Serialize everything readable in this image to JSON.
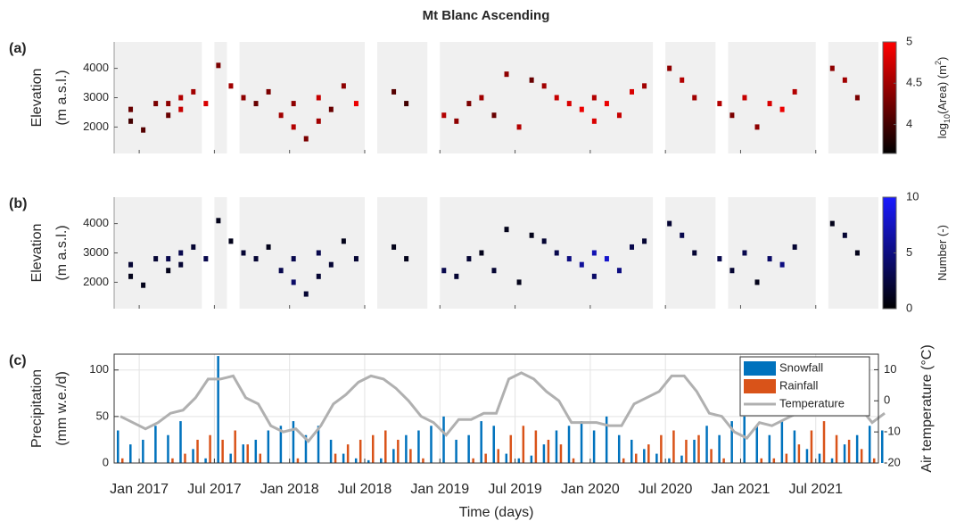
{
  "title": "Mt Blanc Ascending",
  "chart_data": [
    {
      "type": "heatmap",
      "panel_label": "(a)",
      "ylabel": [
        "Elevation",
        "(m a.s.l.)"
      ],
      "xlim": [
        "2016-11",
        "2021-12"
      ],
      "xticks": [
        "2017-01",
        "2017-07",
        "2018-01",
        "2018-07",
        "2019-01",
        "2019-07",
        "2020-01",
        "2020-07",
        "2021-01",
        "2021-07"
      ],
      "ylim": [
        1100,
        4900
      ],
      "yticks": [
        2000,
        3000,
        4000
      ],
      "coverage": [
        [
          "2016-11",
          "2017-06"
        ],
        [
          "2017-07",
          "2017-08"
        ],
        [
          "2017-09",
          "2018-07"
        ],
        [
          "2018-08",
          "2018-12"
        ],
        [
          "2019-01",
          "2020-06"
        ],
        [
          "2020-07",
          "2020-11"
        ],
        [
          "2020-12",
          "2021-07"
        ],
        [
          "2021-08",
          "2021-12"
        ]
      ],
      "x": [
        "2016-12",
        "2016-12",
        "2017-01",
        "2017-02",
        "2017-03",
        "2017-03",
        "2017-04",
        "2017-04",
        "2017-05",
        "2017-06",
        "2017-07",
        "2017-08",
        "2017-09",
        "2017-10",
        "2017-11",
        "2017-12",
        "2018-01",
        "2018-01",
        "2018-02",
        "2018-03",
        "2018-03",
        "2018-04",
        "2018-05",
        "2018-06",
        "2018-09",
        "2018-10",
        "2019-01",
        "2019-02",
        "2019-03",
        "2019-04",
        "2019-05",
        "2019-06",
        "2019-07",
        "2019-08",
        "2019-09",
        "2019-10",
        "2019-11",
        "2019-12",
        "2020-01",
        "2020-01",
        "2020-02",
        "2020-03",
        "2020-04",
        "2020-05",
        "2020-07",
        "2020-08",
        "2020-09",
        "2020-11",
        "2020-12",
        "2021-01",
        "2021-02",
        "2021-03",
        "2021-04",
        "2021-05",
        "2021-08",
        "2021-09",
        "2021-10"
      ],
      "y": [
        2600,
        2200,
        1900,
        2800,
        2800,
        2400,
        3000,
        2600,
        3200,
        2800,
        4100,
        3400,
        3000,
        2800,
        3200,
        2400,
        2000,
        2800,
        1600,
        3000,
        2200,
        2600,
        3400,
        2800,
        3200,
        2800,
        2400,
        2200,
        2800,
        3000,
        2400,
        3800,
        2000,
        3600,
        3400,
        3000,
        2800,
        2600,
        3000,
        2200,
        2800,
        2400,
        3200,
        3400,
        4000,
        3600,
        3000,
        2800,
        2400,
        3000,
        2000,
        2800,
        2600,
        3200,
        4000,
        3600,
        3000
      ],
      "values": [
        4.2,
        4.0,
        4.1,
        4.3,
        4.4,
        4.2,
        4.6,
        4.7,
        4.5,
        4.8,
        4.3,
        4.5,
        4.4,
        4.2,
        4.3,
        4.5,
        4.6,
        4.4,
        4.3,
        4.7,
        4.5,
        4.2,
        4.4,
        4.9,
        4.1,
        4.0,
        4.6,
        4.4,
        4.3,
        4.5,
        4.2,
        4.4,
        4.6,
        4.2,
        4.5,
        4.7,
        4.8,
        4.9,
        4.6,
        4.8,
        4.9,
        4.7,
        4.8,
        4.5,
        4.4,
        4.6,
        4.5,
        4.6,
        4.3,
        4.7,
        4.4,
        4.8,
        4.9,
        4.6,
        4.4,
        4.5,
        4.3
      ],
      "colorbar": {
        "label": [
          "log",
          "10",
          "(Area) (m",
          "2",
          ")"
        ],
        "lim": [
          3.65,
          5
        ],
        "ticks": [
          4,
          4.5,
          5
        ],
        "colors": [
          "#000000",
          "#ff0000"
        ]
      }
    },
    {
      "type": "heatmap",
      "panel_label": "(b)",
      "ylabel": [
        "Elevation",
        "(m a.s.l.)"
      ],
      "xlim": [
        "2016-11",
        "2021-12"
      ],
      "xticks": [
        "2017-01",
        "2017-07",
        "2018-01",
        "2018-07",
        "2019-01",
        "2019-07",
        "2020-01",
        "2020-07",
        "2021-01",
        "2021-07"
      ],
      "ylim": [
        1100,
        4900
      ],
      "yticks": [
        2000,
        3000,
        4000
      ],
      "coverage": [
        [
          "2016-11",
          "2017-06"
        ],
        [
          "2017-07",
          "2017-08"
        ],
        [
          "2017-09",
          "2018-07"
        ],
        [
          "2018-08",
          "2018-12"
        ],
        [
          "2019-01",
          "2020-06"
        ],
        [
          "2020-07",
          "2020-11"
        ],
        [
          "2020-12",
          "2021-07"
        ],
        [
          "2021-08",
          "2021-12"
        ]
      ],
      "x": [
        "2016-12",
        "2016-12",
        "2017-01",
        "2017-02",
        "2017-03",
        "2017-03",
        "2017-04",
        "2017-04",
        "2017-05",
        "2017-06",
        "2017-07",
        "2017-08",
        "2017-09",
        "2017-10",
        "2017-11",
        "2017-12",
        "2018-01",
        "2018-01",
        "2018-02",
        "2018-03",
        "2018-03",
        "2018-04",
        "2018-05",
        "2018-06",
        "2018-09",
        "2018-10",
        "2019-01",
        "2019-02",
        "2019-03",
        "2019-04",
        "2019-05",
        "2019-06",
        "2019-07",
        "2019-08",
        "2019-09",
        "2019-10",
        "2019-11",
        "2019-12",
        "2020-01",
        "2020-01",
        "2020-02",
        "2020-03",
        "2020-04",
        "2020-05",
        "2020-07",
        "2020-08",
        "2020-09",
        "2020-11",
        "2020-12",
        "2021-01",
        "2021-02",
        "2021-03",
        "2021-04",
        "2021-05",
        "2021-08",
        "2021-09",
        "2021-10"
      ],
      "y": [
        2600,
        2200,
        1900,
        2800,
        2800,
        2400,
        3000,
        2600,
        3200,
        2800,
        4100,
        3400,
        3000,
        2800,
        3200,
        2400,
        2000,
        2800,
        1600,
        3000,
        2200,
        2600,
        3400,
        2800,
        3200,
        2800,
        2400,
        2200,
        2800,
        3000,
        2400,
        3800,
        2000,
        3600,
        3400,
        3000,
        2800,
        2600,
        3000,
        2200,
        2800,
        2400,
        3200,
        3400,
        4000,
        3600,
        3000,
        2800,
        2400,
        3000,
        2000,
        2800,
        2600,
        3200,
        4000,
        3600,
        3000
      ],
      "values": [
        2,
        1,
        1,
        2,
        3,
        1,
        3,
        2,
        2,
        3,
        1,
        1,
        2,
        2,
        1,
        3,
        4,
        3,
        2,
        3,
        2,
        2,
        1,
        2,
        1,
        1,
        3,
        2,
        2,
        1,
        2,
        1,
        1,
        1,
        2,
        3,
        5,
        6,
        7,
        4,
        8,
        5,
        3,
        2,
        2,
        3,
        2,
        3,
        2,
        3,
        1,
        4,
        5,
        2,
        1,
        2,
        1
      ],
      "colorbar": {
        "label": [
          "Number (-)"
        ],
        "lim": [
          0,
          10
        ],
        "ticks": [
          0,
          5,
          10
        ],
        "colors": [
          "#000000",
          "#1a1aff"
        ]
      }
    },
    {
      "type": "combo",
      "panel_label": "(c)",
      "ylabel": [
        "Precipitation",
        "(mm w.e./d)"
      ],
      "y2label": "Air temperature (°C)",
      "xlabel": "Time (days)",
      "xlim": [
        "2016-11",
        "2021-12"
      ],
      "xticks": [
        {
          "value": "2017-01",
          "label": "Jan 2017"
        },
        {
          "value": "2017-07",
          "label": "Jul 2017"
        },
        {
          "value": "2018-01",
          "label": "Jan 2018"
        },
        {
          "value": "2018-07",
          "label": "Jul 2018"
        },
        {
          "value": "2019-01",
          "label": "Jan 2019"
        },
        {
          "value": "2019-07",
          "label": "Jul 2019"
        },
        {
          "value": "2020-01",
          "label": "Jan 2020"
        },
        {
          "value": "2020-07",
          "label": "Jul 2020"
        },
        {
          "value": "2021-01",
          "label": "Jan 2021"
        },
        {
          "value": "2021-07",
          "label": "Jul 2021"
        }
      ],
      "ylim": [
        0,
        117
      ],
      "yticks": [
        0,
        50,
        100
      ],
      "y2lim": [
        -20,
        15
      ],
      "y2ticks": [
        -20,
        -10,
        0,
        10
      ],
      "grid": true,
      "legend": "upper right",
      "x": [
        "2016-11",
        "2016-12",
        "2017-01",
        "2017-02",
        "2017-03",
        "2017-04",
        "2017-05",
        "2017-06",
        "2017-07",
        "2017-08",
        "2017-09",
        "2017-10",
        "2017-11",
        "2017-12",
        "2018-01",
        "2018-02",
        "2018-03",
        "2018-04",
        "2018-05",
        "2018-06",
        "2018-07",
        "2018-08",
        "2018-09",
        "2018-10",
        "2018-11",
        "2018-12",
        "2019-01",
        "2019-02",
        "2019-03",
        "2019-04",
        "2019-05",
        "2019-06",
        "2019-07",
        "2019-08",
        "2019-09",
        "2019-10",
        "2019-11",
        "2019-12",
        "2020-01",
        "2020-02",
        "2020-03",
        "2020-04",
        "2020-05",
        "2020-06",
        "2020-07",
        "2020-08",
        "2020-09",
        "2020-10",
        "2020-11",
        "2020-12",
        "2021-01",
        "2021-02",
        "2021-03",
        "2021-04",
        "2021-05",
        "2021-06",
        "2021-07",
        "2021-08",
        "2021-09",
        "2021-10",
        "2021-11",
        "2021-12"
      ],
      "series": [
        {
          "name": "Snowfall",
          "kind": "bar",
          "color": "#0072bd",
          "values": [
            35,
            20,
            25,
            40,
            30,
            45,
            15,
            5,
            115,
            10,
            20,
            25,
            35,
            40,
            45,
            30,
            40,
            25,
            10,
            5,
            3,
            5,
            15,
            30,
            35,
            40,
            50,
            25,
            30,
            45,
            40,
            10,
            5,
            8,
            20,
            35,
            40,
            45,
            35,
            50,
            30,
            25,
            15,
            10,
            5,
            8,
            25,
            40,
            30,
            45,
            50,
            40,
            30,
            45,
            35,
            15,
            10,
            5,
            20,
            30,
            40,
            35
          ]
        },
        {
          "name": "Rainfall",
          "kind": "bar",
          "color": "#d95319",
          "values": [
            5,
            0,
            0,
            0,
            5,
            10,
            25,
            30,
            25,
            35,
            20,
            10,
            0,
            0,
            5,
            0,
            0,
            10,
            20,
            25,
            30,
            35,
            25,
            15,
            5,
            0,
            0,
            0,
            5,
            10,
            15,
            30,
            40,
            35,
            25,
            20,
            5,
            0,
            0,
            0,
            5,
            10,
            20,
            30,
            35,
            25,
            30,
            15,
            5,
            0,
            0,
            5,
            5,
            10,
            20,
            35,
            45,
            30,
            25,
            15,
            5,
            0
          ]
        },
        {
          "name": "Temperature",
          "kind": "line",
          "color": "#b0b0b0",
          "axis": "y2",
          "values": [
            -5,
            -7,
            -9,
            -7,
            -4,
            -3,
            1,
            7,
            7,
            8,
            1,
            -1,
            -8,
            -10,
            -9,
            -13,
            -8,
            -1,
            2,
            6,
            8,
            7,
            4,
            0,
            -5,
            -7,
            -11,
            -6,
            -6,
            -4,
            -4,
            7,
            9,
            7,
            3,
            0,
            -7,
            -7,
            -7,
            -8,
            -8,
            -1,
            1,
            3,
            8,
            8,
            3,
            -4,
            -5,
            -10,
            -12,
            -7,
            -8,
            -6,
            -4,
            5,
            4,
            4,
            4,
            -2,
            -7,
            -4
          ]
        }
      ]
    }
  ]
}
